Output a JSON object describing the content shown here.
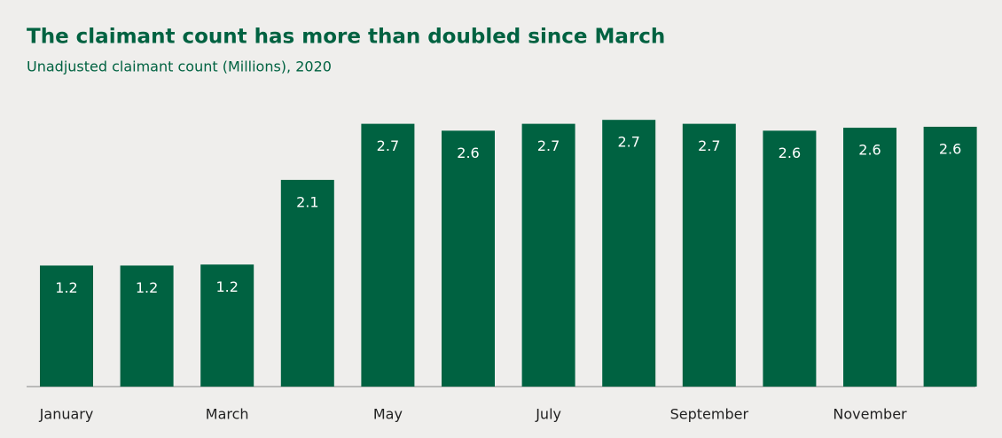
{
  "chart_data": {
    "type": "bar",
    "title": "The claimant count has more than doubled since March",
    "subtitle": "Unadjusted claimant count (Millions), 2020",
    "categories": [
      "January",
      null,
      "March",
      null,
      "May",
      null,
      "July",
      null,
      "September",
      null,
      "November",
      null
    ],
    "values": [
      1.23,
      1.23,
      1.24,
      2.1,
      2.67,
      2.6,
      2.67,
      2.71,
      2.67,
      2.6,
      2.63,
      2.64
    ],
    "value_labels": [
      "1.2",
      "1.2",
      "1.2",
      "2.1",
      "2.7",
      "2.6",
      "2.7",
      "2.7",
      "2.7",
      "2.6",
      "2.6",
      "2.6"
    ],
    "color": "#006241"
  }
}
